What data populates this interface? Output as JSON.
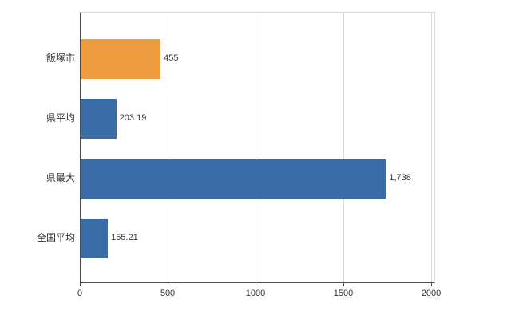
{
  "chart_data": {
    "type": "bar",
    "orientation": "horizontal",
    "title": "",
    "xlabel": "",
    "ylabel": "",
    "categories": [
      "飯塚市",
      "県平均",
      "県最大",
      "全国平均"
    ],
    "values": [
      455,
      203.19,
      1738,
      155.21
    ],
    "value_labels": [
      "455",
      "203.19",
      "1,738",
      "155.21"
    ],
    "bar_colors": [
      "#ED9C3F",
      "#3A6CA8",
      "#3A6CA8",
      "#3A6CA8"
    ],
    "xlim": [
      0,
      2000
    ],
    "x_ticks": [
      0,
      500,
      1000,
      1500,
      2000
    ],
    "x_tick_labels": [
      "0",
      "500",
      "1000",
      "1500",
      "2000"
    ],
    "grid": true,
    "legend": "none"
  },
  "colors": {
    "grid": "#d9d9d9",
    "axis": "#4d4d4d",
    "text": "#333333",
    "background": "#ffffff"
  }
}
